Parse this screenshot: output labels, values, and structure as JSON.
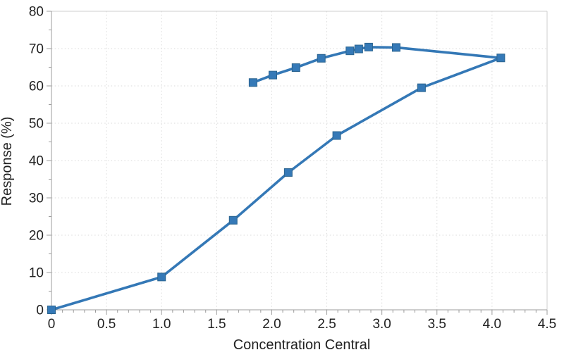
{
  "chart_data": {
    "type": "line",
    "title": "",
    "xlabel": "Concentration Central",
    "ylabel": "Response (%)",
    "xlim": [
      0,
      4.5
    ],
    "ylim": [
      0,
      80
    ],
    "x_major_ticks": [
      0,
      0.5,
      1.0,
      1.5,
      2.0,
      2.5,
      3.0,
      3.5,
      4.0,
      4.5
    ],
    "x_tick_labels": [
      "0",
      "0.5",
      "1.0",
      "1.5",
      "2.0",
      "2.5",
      "3.0",
      "3.5",
      "4.0",
      "4.5"
    ],
    "x_minor_step": 0.1,
    "y_major_ticks": [
      0,
      10,
      20,
      30,
      40,
      50,
      60,
      70,
      80
    ],
    "y_tick_labels": [
      "0",
      "10",
      "20",
      "30",
      "40",
      "50",
      "60",
      "70",
      "80"
    ],
    "y_minor_step": 5,
    "grid": "dotted-major-both-axes",
    "legend": "none",
    "marker": "square",
    "series": [
      {
        "points": [
          [
            0.0,
            0.0
          ],
          [
            1.0,
            8.8
          ],
          [
            1.65,
            24.0
          ],
          [
            2.15,
            36.8
          ],
          [
            2.59,
            46.7
          ],
          [
            3.36,
            59.5
          ],
          [
            4.08,
            67.5
          ],
          [
            3.13,
            70.3
          ],
          [
            2.88,
            70.4
          ],
          [
            2.79,
            69.9
          ],
          [
            2.71,
            69.4
          ],
          [
            2.45,
            67.4
          ],
          [
            2.22,
            64.9
          ],
          [
            2.01,
            62.9
          ],
          [
            1.83,
            60.9
          ]
        ]
      }
    ],
    "colors": {
      "series": "#3478b6",
      "marker_fill": "#3579b7",
      "marker_edge": "#2b648f",
      "grid": "#d9d9d9",
      "axis": "#9c9c9c",
      "frame": "#cfcfcf",
      "text": "#212121",
      "background": "#ffffff"
    }
  }
}
